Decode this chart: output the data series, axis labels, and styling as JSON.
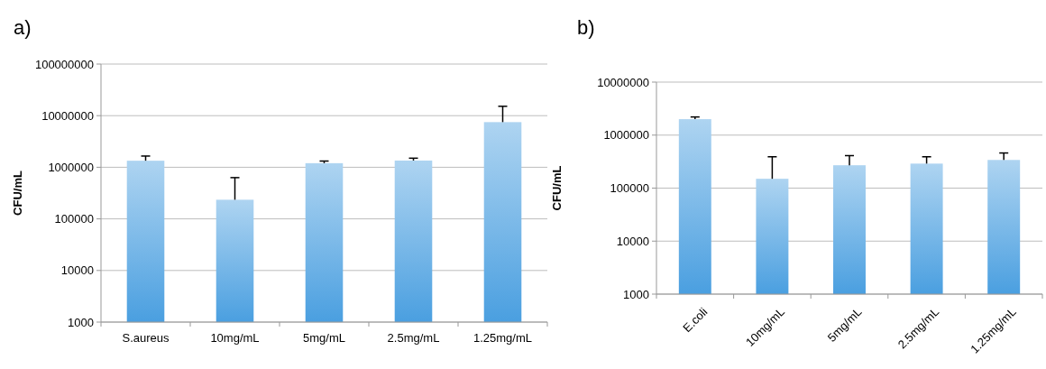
{
  "chart_data": [
    {
      "type": "bar",
      "title": "a)",
      "ylabel": "CFU/mL",
      "categories": [
        "S.aureus",
        "10mg/mL",
        "5mg/mL",
        "2.5mg/mL",
        "1.25mg/mL"
      ],
      "values": [
        1340000,
        235000,
        1200000,
        1350000,
        7500000
      ],
      "errors": [
        [
          1340000,
          1650000
        ],
        [
          235000,
          630000
        ],
        [
          1200000,
          1320000
        ],
        [
          1350000,
          1500000
        ],
        [
          7500000,
          15200000
        ]
      ],
      "color": "#4a9fe0",
      "log": true,
      "ylim": [
        1000,
        100000000
      ],
      "yticks": [
        1000,
        10000,
        100000,
        1000000,
        10000000,
        100000000
      ],
      "grid": "y"
    },
    {
      "type": "bar",
      "title": "b)",
      "ylabel": "CFU/mL",
      "categories": [
        "E.coli",
        "10mg/mL",
        "5mg/mL",
        "2.5mg/mL",
        "1.25mg/mL"
      ],
      "values": [
        2000000,
        150000,
        270000,
        290000,
        340000
      ],
      "errors": [
        [
          2000000,
          2200000
        ],
        [
          150000,
          390000
        ],
        [
          270000,
          410000
        ],
        [
          290000,
          390000
        ],
        [
          340000,
          460000
        ]
      ],
      "color": "#4a9fe0",
      "log": true,
      "ylim": [
        1000,
        10000000
      ],
      "yticks": [
        1000,
        10000,
        100000,
        1000000,
        10000000
      ],
      "grid": "y"
    }
  ]
}
